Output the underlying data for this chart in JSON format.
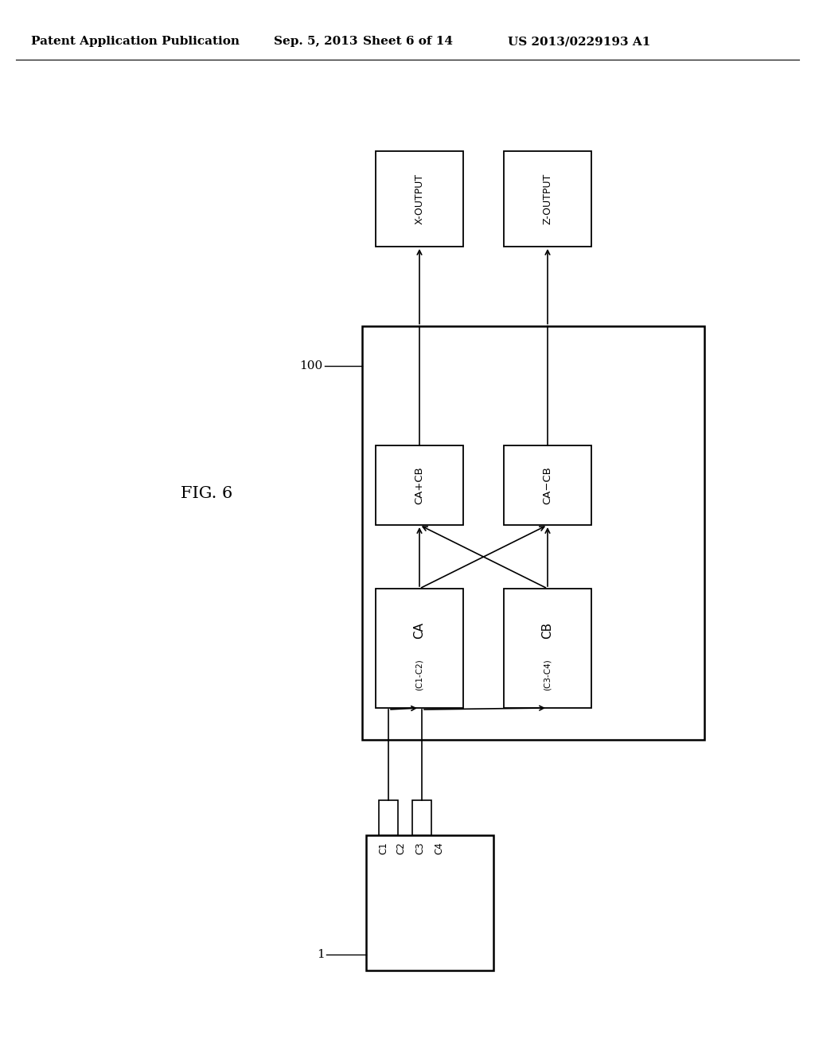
{
  "bg": "#ffffff",
  "header_left": "Patent Application Publication",
  "header_mid1": "Sep. 5, 2013",
  "header_mid2": "Sheet 6 of 14",
  "header_right": "US 2013/0229193 A1",
  "fig_label": "FIG. 6",
  "label_100": "100",
  "label_1": "1",
  "ca_label": "CA",
  "cb_label": "CB",
  "ca_sub": "(C1-C2)",
  "cb_sub": "(C3-C4)",
  "capb_label": "CA+CB",
  "camb_label": "CA−CB",
  "xout_label": "X-OUTPUT",
  "zout_label": "Z-OUTPUT",
  "wire_labels": [
    "C1",
    "C2",
    "C3",
    "C4"
  ]
}
